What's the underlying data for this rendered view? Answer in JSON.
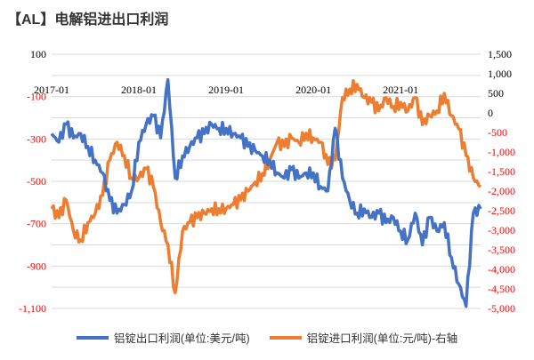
{
  "title": "【AL】电解铝进出口利润",
  "chart_data": {
    "type": "line",
    "title": "【AL】电解铝进出口利润",
    "x": [
      "2017-01",
      "2017-02",
      "2017-03",
      "2017-04",
      "2017-05",
      "2017-06",
      "2017-07",
      "2017-08",
      "2017-09",
      "2017-10",
      "2017-11",
      "2017-12",
      "2018-01",
      "2018-02",
      "2018-03",
      "2018-04",
      "2018-05",
      "2018-06",
      "2018-07",
      "2018-08",
      "2018-09",
      "2018-10",
      "2018-11",
      "2018-12",
      "2019-01",
      "2019-02",
      "2019-03",
      "2019-04",
      "2019-05",
      "2019-06",
      "2019-07",
      "2019-08",
      "2019-09",
      "2019-10",
      "2019-11",
      "2019-12",
      "2020-01",
      "2020-02",
      "2020-03",
      "2020-04",
      "2020-05",
      "2020-06",
      "2020-07",
      "2020-08",
      "2020-09",
      "2020-10",
      "2020-11",
      "2020-12",
      "2021-01",
      "2021-02",
      "2021-03",
      "2021-04",
      "2021-05",
      "2021-06",
      "2021-07",
      "2021-08",
      "2021-09",
      "2021-10",
      "2021-11",
      "2021-12"
    ],
    "x_tick_labels": [
      "2017-01",
      "2018-01",
      "2019-01",
      "2020-01",
      "2021-01"
    ],
    "series": [
      {
        "name": "铝锭出口利润(单位:美元/吨)",
        "axis": "left",
        "color": "#4472C4",
        "values": [
          -275,
          -315,
          -230,
          -295,
          -275,
          -335,
          -400,
          -460,
          -590,
          -650,
          -610,
          -545,
          -315,
          -230,
          -190,
          -295,
          -20,
          -485,
          -380,
          -335,
          -295,
          -275,
          -230,
          -250,
          -250,
          -275,
          -295,
          -335,
          -355,
          -380,
          -400,
          -460,
          -485,
          -445,
          -485,
          -460,
          -460,
          -525,
          -545,
          -250,
          -485,
          -590,
          -650,
          -630,
          -670,
          -650,
          -695,
          -670,
          -735,
          -775,
          -650,
          -800,
          -670,
          -735,
          -695,
          -860,
          -985,
          -1090,
          -650,
          -630
        ]
      },
      {
        "name": "铝锭进口利润(单位:元/吨)-右轴",
        "axis": "right",
        "color": "#ED7D31",
        "values": [
          -2450,
          -2680,
          -2230,
          -3020,
          -3250,
          -2800,
          -2570,
          -2110,
          -1200,
          -750,
          -1090,
          -1660,
          -1660,
          -1430,
          -1890,
          -2800,
          -3360,
          -4600,
          -3020,
          -2800,
          -2680,
          -2570,
          -2450,
          -2450,
          -2450,
          -2340,
          -2230,
          -2000,
          -1770,
          -1550,
          -1200,
          -750,
          -860,
          -640,
          -750,
          -520,
          -640,
          -750,
          -1320,
          -1200,
          390,
          610,
          730,
          390,
          270,
          50,
          390,
          160,
          270,
          50,
          390,
          -300,
          -70,
          50,
          500,
          -70,
          -410,
          -1090,
          -1660,
          -1890
        ]
      }
    ],
    "left_axis": {
      "min": -1100,
      "max": 100,
      "ticks": [
        100,
        -100,
        -300,
        -500,
        -700,
        -900,
        -1100
      ],
      "tick_labels": [
        "100",
        "-100",
        "-300",
        "-500",
        "-700",
        "-900",
        "-1,100"
      ]
    },
    "right_axis": {
      "min": -5000,
      "max": 1500,
      "ticks": [
        1500,
        1000,
        500,
        0,
        -500,
        -1000,
        -1500,
        -2000,
        -2500,
        -3000,
        -3500,
        -4000,
        -4500,
        -5000
      ],
      "tick_labels": [
        "1,500",
        "1,000",
        "500",
        "0",
        "-500",
        "-1,000",
        "-1,500",
        "-2,000",
        "-2,500",
        "-3,000",
        "-3,500",
        "-4,000",
        "-4,500",
        "-5,000"
      ]
    },
    "negative_label_color": "#FF0000",
    "grid": true,
    "legend": "bottom"
  }
}
